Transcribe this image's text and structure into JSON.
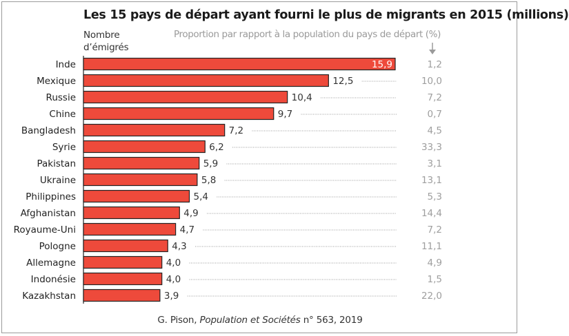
{
  "chart_data": {
    "type": "bar",
    "orientation": "horizontal",
    "title": "Les 15 pays de départ ayant fourni le plus de migrants en 2015 (millions)",
    "xlabel": "Nombre d’émigrés",
    "ylabel": "",
    "secondary_column_label": "Proportion par rapport à la population du pays de départ (%)",
    "categories": [
      "Inde",
      "Mexique",
      "Russie",
      "Chine",
      "Bangladesh",
      "Syrie",
      "Pakistan",
      "Ukraine",
      "Philippines",
      "Afghanistan",
      "Royaume-Uni",
      "Pologne",
      "Allemagne",
      "Indonésie",
      "Kazakhstan"
    ],
    "values": [
      15.9,
      12.5,
      10.4,
      9.7,
      7.2,
      6.2,
      5.9,
      5.8,
      5.4,
      4.9,
      4.7,
      4.3,
      4.0,
      4.0,
      3.9
    ],
    "value_labels": [
      "15,9",
      "12,5",
      "10,4",
      "9,7",
      "7,2",
      "6,2",
      "5,9",
      "5,8",
      "5,4",
      "4,9",
      "4,7",
      "4,3",
      "4,0",
      "4,0",
      "3,9"
    ],
    "proportion_percent": [
      1.2,
      10.0,
      7.2,
      0.7,
      4.5,
      33.3,
      3.1,
      13.1,
      5.3,
      14.4,
      7.2,
      11.1,
      4.9,
      1.5,
      22.0
    ],
    "proportion_labels": [
      "1,2",
      "10,0",
      "7,2",
      "0,7",
      "4,5",
      "33,3",
      "3,1",
      "13,1",
      "5,3",
      "14,4",
      "7,2",
      "11,1",
      "4,9",
      "1,5",
      "22,0"
    ],
    "xlim": [
      0,
      15.9
    ],
    "grid": false,
    "legend": "none",
    "colors": {
      "bar": "#ee4a3b",
      "bar_border": "#222222",
      "proportion_text": "#9e9e9e",
      "leader": "#9a9a9a"
    }
  },
  "header": {
    "title": "Les 15 pays de départ ayant fourni le plus de migrants en 2015 (millions)",
    "count_label_line1": "Nombre",
    "count_label_line2": "d’émigrés",
    "proportion_label": "Proportion par rapport à la population du pays de départ (%)",
    "arrow_icon": "arrow-down"
  },
  "source": {
    "author": "G. Pison, ",
    "publication": "Population et Sociétés",
    "rest": " n° 563, 2019"
  }
}
